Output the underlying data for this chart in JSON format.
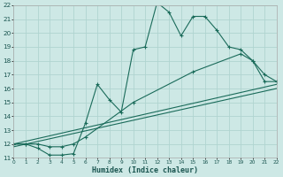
{
  "xlabel": "Humidex (Indice chaleur)",
  "bg_color": "#cde8e5",
  "grid_color": "#b0d4d0",
  "line_color": "#1a6b5a",
  "xlim": [
    0,
    22
  ],
  "ylim": [
    11,
    22
  ],
  "x_ticks": [
    0,
    1,
    2,
    3,
    4,
    5,
    6,
    7,
    8,
    9,
    10,
    11,
    12,
    13,
    14,
    15,
    16,
    17,
    18,
    19,
    20,
    21,
    22
  ],
  "y_ticks": [
    11,
    12,
    13,
    14,
    15,
    16,
    17,
    18,
    19,
    20,
    21,
    22
  ],
  "series1_x": [
    0,
    1,
    2,
    3,
    4,
    5,
    6,
    7,
    8,
    9,
    10,
    11,
    12,
    13,
    14,
    15,
    16,
    17,
    18,
    19,
    20,
    21,
    22
  ],
  "series1_y": [
    12.0,
    12.0,
    11.7,
    11.2,
    11.2,
    11.3,
    13.5,
    16.3,
    15.2,
    14.3,
    18.8,
    19.0,
    22.2,
    21.5,
    19.8,
    21.2,
    21.2,
    20.2,
    19.0,
    18.8,
    18.0,
    16.5,
    16.5
  ],
  "series2_x": [
    0,
    1,
    2,
    3,
    4,
    5,
    6,
    10,
    15,
    19,
    20,
    21,
    22
  ],
  "series2_y": [
    12.0,
    12.0,
    12.0,
    11.8,
    11.8,
    12.0,
    12.5,
    15.0,
    17.2,
    18.5,
    18.0,
    17.0,
    16.5
  ],
  "series3_x": [
    0,
    22
  ],
  "series3_y": [
    12.0,
    16.3
  ],
  "series4_x": [
    0,
    22
  ],
  "series4_y": [
    11.8,
    16.0
  ]
}
